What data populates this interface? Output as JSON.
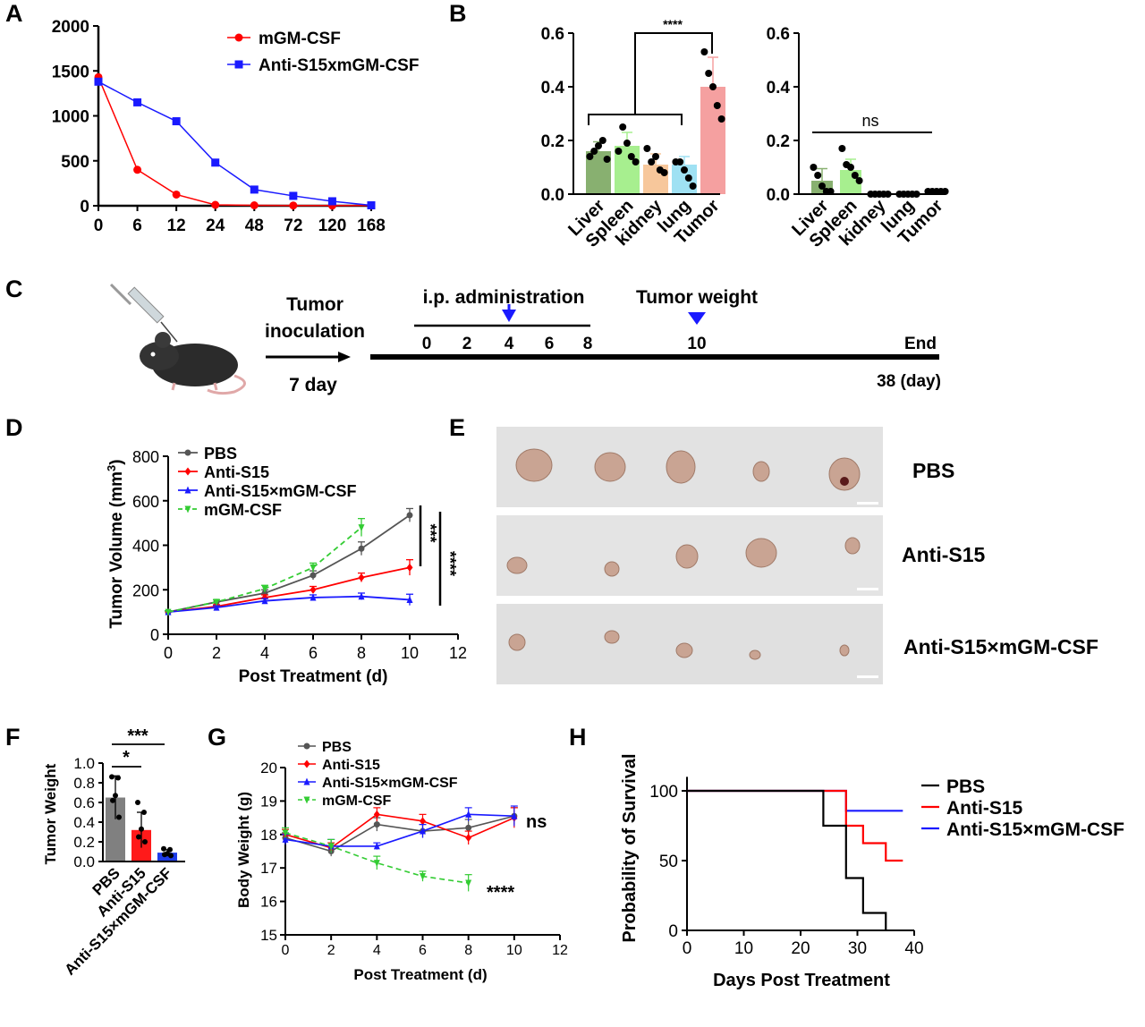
{
  "panel_labels": {
    "A": "A",
    "B": "B",
    "C": "C",
    "D": "D",
    "E": "E",
    "F": "F",
    "G": "G",
    "H": "H"
  },
  "colors": {
    "red": "#ff0000",
    "blue": "#1a1aff",
    "green": "#33cc33",
    "gray": "#555555",
    "black": "#000000"
  },
  "chart_data": [
    {
      "panel": "A",
      "type": "line",
      "x_categories": [
        "0",
        "6",
        "12",
        "24",
        "48",
        "72",
        "120",
        "168"
      ],
      "yticks": [
        "0",
        "500",
        "1000",
        "1500",
        "2000"
      ],
      "ylim": [
        0,
        2000
      ],
      "series": [
        {
          "name": "mGM-CSF",
          "color": "#ff0000",
          "marker": "circle",
          "values": [
            1430,
            400,
            125,
            10,
            5,
            3,
            2,
            2
          ]
        },
        {
          "name": "Anti-S15xmGM-CSF",
          "color": "#1a1aff",
          "marker": "square",
          "values": [
            1380,
            1150,
            940,
            480,
            180,
            110,
            50,
            5
          ]
        }
      ]
    },
    {
      "panel": "B-left",
      "type": "bar",
      "categories": [
        "Liver",
        "Spleen",
        "kidney",
        "lung",
        "Tumor"
      ],
      "bar_colors": [
        "#88b070",
        "#a7ef8f",
        "#f7c79b",
        "#9fe1f3",
        "#f5a0a0"
      ],
      "values": [
        0.16,
        0.18,
        0.11,
        0.11,
        0.4
      ],
      "errors": [
        0.035,
        0.05,
        0.04,
        0.03,
        0.11
      ],
      "points": [
        [
          0.14,
          0.16,
          0.18,
          0.2,
          0.13
        ],
        [
          0.16,
          0.25,
          0.19,
          0.14,
          0.12
        ],
        [
          0.17,
          0.12,
          0.14,
          0.09,
          0.08
        ],
        [
          0.12,
          0.12,
          0.09,
          0.06,
          0.03
        ],
        [
          0.53,
          0.45,
          0.4,
          0.33,
          0.28
        ]
      ],
      "yticks": [
        "0.0",
        "0.2",
        "0.4",
        "0.6"
      ],
      "ylim": [
        0,
        0.6
      ],
      "significance": "****"
    },
    {
      "panel": "B-right",
      "type": "bar",
      "categories": [
        "Liver",
        "Spleen",
        "kidney",
        "lung",
        "Tumor"
      ],
      "bar_colors": [
        "#88b070",
        "#a7ef8f",
        "#f7c79b",
        "#9fe1f3",
        "#f5a0a0"
      ],
      "values": [
        0.05,
        0.09,
        0.0,
        0.0,
        0.01
      ],
      "errors": [
        0.045,
        0.04,
        0.0,
        0.0,
        0.002
      ],
      "points": [
        [
          0.1,
          0.07,
          0.03,
          0.01,
          0.01
        ],
        [
          0.17,
          0.11,
          0.1,
          0.07,
          0.05
        ],
        [
          0,
          0,
          0,
          0,
          0
        ],
        [
          0,
          0,
          0,
          0,
          0
        ],
        [
          0.01,
          0.01,
          0.01,
          0.01,
          0.01
        ]
      ],
      "yticks": [
        "0.0",
        "0.2",
        "0.4",
        "0.6"
      ],
      "ylim": [
        0,
        0.6
      ],
      "significance": "ns"
    },
    {
      "panel": "D",
      "type": "line",
      "x": [
        0,
        2,
        4,
        6,
        8,
        10
      ],
      "xticks": [
        "0",
        "2",
        "4",
        "6",
        "8",
        "10",
        "12"
      ],
      "xlim": [
        0,
        12
      ],
      "yticks": [
        "0",
        "200",
        "400",
        "600",
        "800"
      ],
      "ylim": [
        0,
        800
      ],
      "xlabel": "Post Treatment (d)",
      "ylabel": "Tumor Volume (mm",
      "ylabel_sup": "3",
      "ylabel_end": ")",
      "series": [
        {
          "name": "PBS",
          "color": "#555555",
          "values": [
            100,
            145,
            185,
            265,
            385,
            535
          ],
          "errors": [
            5,
            10,
            15,
            20,
            30,
            30
          ]
        },
        {
          "name": "Anti-S15",
          "color": "#ff0000",
          "values": [
            100,
            125,
            165,
            200,
            255,
            300
          ],
          "errors": [
            5,
            8,
            12,
            15,
            20,
            35
          ]
        },
        {
          "name": "Anti-S15×mGM-CSF",
          "color": "#1a1aff",
          "values": [
            100,
            120,
            150,
            165,
            170,
            155
          ],
          "errors": [
            5,
            8,
            10,
            12,
            15,
            25
          ]
        },
        {
          "name": "mGM-CSF",
          "color": "#33cc33",
          "dashed": true,
          "values": [
            100,
            145,
            205,
            300,
            480,
            null
          ],
          "errors": [
            5,
            10,
            15,
            20,
            40,
            0
          ]
        }
      ],
      "significance": [
        "***",
        "****"
      ]
    },
    {
      "panel": "F",
      "type": "bar",
      "categories": [
        "PBS",
        "Anti-S15",
        "Anti-S15×mGM-CSF"
      ],
      "bar_colors": [
        "#808080",
        "#ff1a1a",
        "#1e3ce8"
      ],
      "values": [
        0.65,
        0.32,
        0.09
      ],
      "errors": [
        0.22,
        0.18,
        0.03
      ],
      "points": [
        [
          0.86,
          0.85,
          0.67,
          0.62,
          0.45
        ],
        [
          0.6,
          0.5,
          0.33,
          0.25,
          0.2
        ],
        [
          0.13,
          0.12,
          0.08,
          0.07,
          0.06
        ]
      ],
      "yticks": [
        "0.0",
        "0.2",
        "0.4",
        "0.6",
        "0.8",
        "1.0"
      ],
      "ylim": [
        0,
        1.0
      ],
      "ylabel": "Tumor Weight",
      "significance": [
        "*",
        "***"
      ]
    },
    {
      "panel": "G",
      "type": "line",
      "x": [
        0,
        2,
        4,
        6,
        8,
        10
      ],
      "xticks": [
        "0",
        "2",
        "4",
        "6",
        "8",
        "10",
        "12"
      ],
      "xlim": [
        0,
        12
      ],
      "yticks": [
        "15",
        "16",
        "17",
        "18",
        "19",
        "20"
      ],
      "ylim": [
        15,
        20
      ],
      "xlabel": "Post Treatment (d)",
      "ylabel": "Body Weight (g)",
      "series": [
        {
          "name": "PBS",
          "color": "#555555",
          "values": [
            17.9,
            17.5,
            18.3,
            18.1,
            18.2,
            18.55
          ],
          "errors": [
            0.15,
            0.15,
            0.2,
            0.2,
            0.25,
            0.25
          ]
        },
        {
          "name": "Anti-S15",
          "color": "#ff0000",
          "values": [
            18.0,
            17.6,
            18.6,
            18.4,
            17.9,
            18.5
          ],
          "errors": [
            0.15,
            0.15,
            0.2,
            0.2,
            0.2,
            0.3
          ]
        },
        {
          "name": "Anti-S15×mGM-CSF",
          "color": "#1a1aff",
          "values": [
            17.85,
            17.65,
            17.65,
            18.1,
            18.6,
            18.55
          ],
          "errors": [
            0.15,
            0.2,
            0.1,
            0.2,
            0.2,
            0.3
          ]
        },
        {
          "name": "mGM-CSF",
          "color": "#33cc33",
          "dashed": true,
          "values": [
            18.05,
            17.65,
            17.15,
            16.75,
            16.55,
            null
          ],
          "errors": [
            0.15,
            0.2,
            0.2,
            0.15,
            0.25,
            0
          ]
        }
      ],
      "annotations": [
        "ns",
        "****"
      ]
    },
    {
      "panel": "H",
      "type": "line",
      "step": true,
      "xticks": [
        "0",
        "10",
        "20",
        "30",
        "40"
      ],
      "xlim": [
        0,
        40
      ],
      "yticks": [
        "0",
        "50",
        "100"
      ],
      "ylim": [
        0,
        110
      ],
      "xlabel": "Days Post Treatment",
      "ylabel": "Probability of Survival",
      "series": [
        {
          "name": "PBS",
          "color": "#000000",
          "steps": [
            [
              0,
              100
            ],
            [
              24,
              100
            ],
            [
              24,
              75
            ],
            [
              28,
              75
            ],
            [
              28,
              37.5
            ],
            [
              31,
              37.5
            ],
            [
              31,
              12.5
            ],
            [
              35,
              12.5
            ],
            [
              35,
              0
            ]
          ]
        },
        {
          "name": "Anti-S15",
          "color": "#ff0000",
          "steps": [
            [
              0,
              100
            ],
            [
              28,
              100
            ],
            [
              28,
              75
            ],
            [
              31,
              75
            ],
            [
              31,
              62.5
            ],
            [
              35,
              62.5
            ],
            [
              35,
              50
            ],
            [
              38,
              50
            ]
          ]
        },
        {
          "name": "Anti-S15×mGM-CSF",
          "color": "#1a1aff",
          "steps": [
            [
              0,
              100
            ],
            [
              28,
              100
            ],
            [
              28,
              85.7
            ],
            [
              38,
              85.7
            ]
          ]
        }
      ]
    }
  ],
  "schematic": {
    "tumor_inoculation_1": "Tumor",
    "tumor_inoculation_2": "inoculation",
    "seven_day": "7 day",
    "admin_label": "i.p. administration",
    "admin_days": [
      "0",
      "2",
      "4",
      "6",
      "8"
    ],
    "weight_label": "Tumor weight",
    "weight_day": "10",
    "end_label": "End",
    "end_day": "38 (day)"
  },
  "photo_labels": [
    "PBS",
    "Anti-S15",
    "Anti-S15×mGM-CSF"
  ]
}
